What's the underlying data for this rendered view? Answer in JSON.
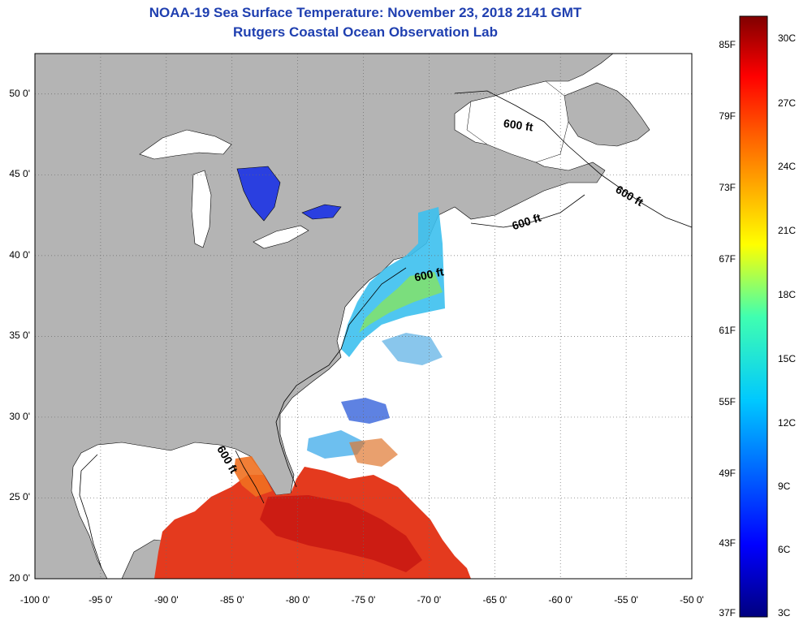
{
  "title_line1": "NOAA-19 Sea Surface Temperature:  November 23, 2018 2141 GMT",
  "title_line2": "Rutgers Coastal Ocean Observation Lab",
  "map": {
    "lon_range": [
      -100,
      -50
    ],
    "lat_range": [
      20,
      52.5
    ],
    "lat_ticks": [
      {
        "value": 50,
        "label": "50 0'"
      },
      {
        "value": 45,
        "label": "45 0'"
      },
      {
        "value": 40,
        "label": "40 0'"
      },
      {
        "value": 35,
        "label": "35 0'"
      },
      {
        "value": 30,
        "label": "30 0'"
      },
      {
        "value": 25,
        "label": "25 0'"
      },
      {
        "value": 20,
        "label": "20 0'"
      }
    ],
    "lon_ticks": [
      {
        "value": -100,
        "label": "-100 0'"
      },
      {
        "value": -95,
        "label": "-95 0'"
      },
      {
        "value": -90,
        "label": "-90 0'"
      },
      {
        "value": -85,
        "label": "-85 0'"
      },
      {
        "value": -80,
        "label": "-80 0'"
      },
      {
        "value": -75,
        "label": "-75 0'"
      },
      {
        "value": -70,
        "label": "-70 0'"
      },
      {
        "value": -65,
        "label": "-65 0'"
      },
      {
        "value": -60,
        "label": "-60 0'"
      },
      {
        "value": -55,
        "label": "-55 0'"
      },
      {
        "value": -50,
        "label": "-50 0'"
      }
    ],
    "isobath_labels": [
      "600 ft",
      "600 ft",
      "600 ft",
      "600 ft",
      "600 ft"
    ],
    "colors": {
      "land": "#b4b4b4",
      "no_data": "#ffffff",
      "grid": "#6a6a6a"
    }
  },
  "colorbar": {
    "fahrenheit_labels": [
      "85F",
      "79F",
      "73F",
      "67F",
      "61F",
      "55F",
      "49F",
      "43F",
      "37F"
    ],
    "celsius_labels": [
      "30C",
      "27C",
      "24C",
      "21C",
      "18C",
      "15C",
      "12C",
      "9C",
      "6C",
      "3C"
    ],
    "range_c": [
      3,
      31
    ]
  }
}
